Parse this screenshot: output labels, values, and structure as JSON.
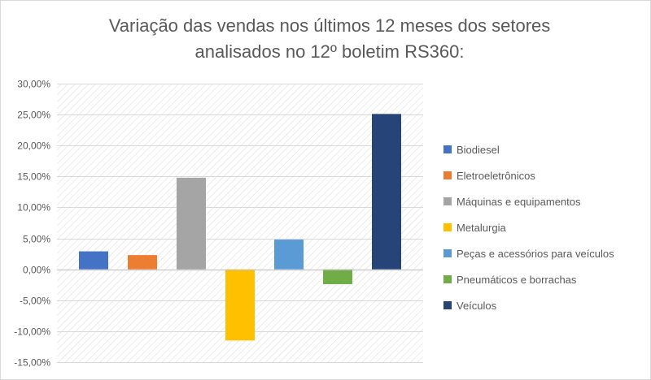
{
  "chart_data": {
    "type": "bar",
    "title_lines": [
      "Variação das vendas nos últimos 12 meses dos setores",
      "analisados no 12º boletim RS360:"
    ],
    "series": [
      {
        "name": "Biodiesel",
        "value": 2.9,
        "color": "#4472c4"
      },
      {
        "name": "Eletroeletrônicos",
        "value": 2.3,
        "color": "#ed7d31"
      },
      {
        "name": "Máquinas e equipamentos",
        "value": 14.8,
        "color": "#a5a5a5"
      },
      {
        "name": "Metalurgia",
        "value": -11.5,
        "color": "#ffc000"
      },
      {
        "name": "Peças e acessórios para veículos",
        "value": 4.8,
        "color": "#5b9bd5"
      },
      {
        "name": "Pneumáticos e borrachas",
        "value": -2.4,
        "color": "#70ad47"
      },
      {
        "name": "Veículos",
        "value": 25.1,
        "color": "#264478"
      }
    ],
    "ylim": [
      -15,
      30
    ],
    "yticks": [
      "-15,00%",
      "-10,00%",
      "-5,00%",
      "0,00%",
      "5,00%",
      "10,00%",
      "15,00%",
      "20,00%",
      "25,00%",
      "30,00%"
    ],
    "ytick_values": [
      -15,
      -10,
      -5,
      0,
      5,
      10,
      15,
      20,
      25,
      30
    ],
    "grid": true,
    "background_pattern": "diagonal-hatch",
    "legend_position": "right"
  }
}
